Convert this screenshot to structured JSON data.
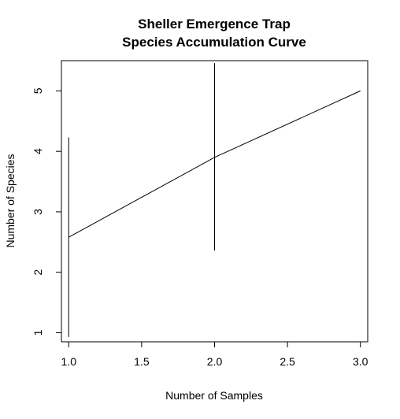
{
  "chart_data": {
    "type": "line",
    "title": [
      "Sheller Emergence Trap",
      "Species Accumulation Curve"
    ],
    "xlabel": "Number of Samples",
    "ylabel": "Number of Species",
    "xlim": [
      0.95,
      3.05
    ],
    "ylim": [
      0.85,
      5.5
    ],
    "x_ticks": [
      1.0,
      1.5,
      2.0,
      2.5,
      3.0
    ],
    "x_tick_labels": [
      "1.0",
      "1.5",
      "2.0",
      "2.5",
      "3.0"
    ],
    "y_ticks": [
      1,
      2,
      3,
      4,
      5
    ],
    "y_tick_labels": [
      "1",
      "2",
      "3",
      "4",
      "5"
    ],
    "grid": false,
    "series": [
      {
        "x": [
          1,
          2,
          3
        ],
        "y": [
          2.58,
          3.9,
          5.0
        ],
        "error_low": [
          0.93,
          2.36,
          null
        ],
        "error_high": [
          4.23,
          5.46,
          null
        ]
      }
    ]
  }
}
